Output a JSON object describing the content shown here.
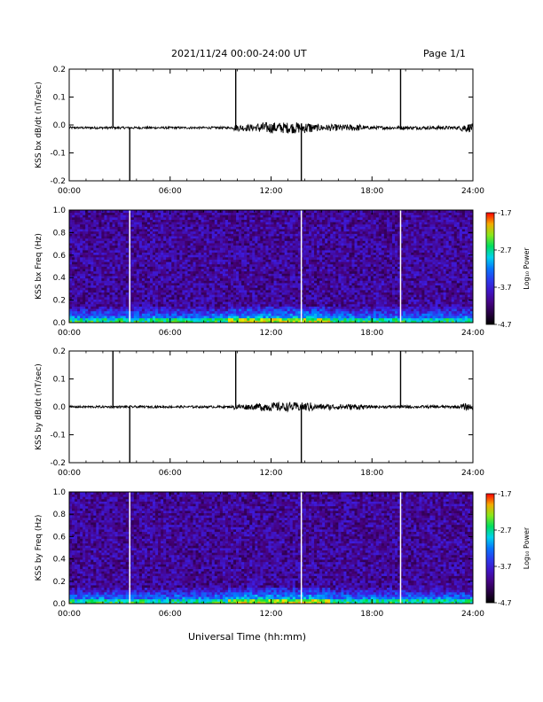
{
  "header": {
    "title": "2021/11/24  00:00-24:00 UT",
    "page": "Page 1/1"
  },
  "x_axis_title": "Universal Time (hh:mm)",
  "chart_data": [
    {
      "type": "line",
      "ylabel": "KSS bx dB/dt (nT/sec)",
      "xlim": [
        0,
        24
      ],
      "ylim": [
        -0.2,
        0.2
      ],
      "xticks": [
        "00:00",
        "06:00",
        "12:00",
        "18:00",
        "24:00"
      ],
      "yticks": [
        "-0.2",
        "-0.1",
        "0.0",
        "0.1",
        "0.2"
      ],
      "baseline": -0.01,
      "spikes": [
        {
          "t": 2.6,
          "y": 0.2
        },
        {
          "t": 3.6,
          "y": -0.2
        },
        {
          "t": 9.9,
          "y": 0.2
        },
        {
          "t": 13.8,
          "y": -0.2
        },
        {
          "t": 19.7,
          "y": 0.2
        }
      ],
      "noise": [
        [
          0,
          0.004
        ],
        [
          9.8,
          0.012
        ],
        [
          11.2,
          0.02
        ],
        [
          14.5,
          0.012
        ],
        [
          17.5,
          0.006
        ],
        [
          23.3,
          0.015
        ]
      ]
    },
    {
      "type": "heatmap",
      "ylabel": "KSS bx Freq (Hz)",
      "xlim": [
        0,
        24
      ],
      "ylim": [
        0.0,
        1.0
      ],
      "xticks": [
        "00:00",
        "06:00",
        "12:00",
        "18:00",
        "24:00"
      ],
      "yticks": [
        "0.0",
        "0.2",
        "0.4",
        "0.6",
        "0.8",
        "1.0"
      ],
      "gaps": [
        3.6,
        13.8,
        19.7
      ],
      "colorbar": {
        "label": "Log₁₀ Power",
        "min": -4.7,
        "max": -1.7,
        "ticks": [
          "-1.7",
          "-2.7",
          "-3.7",
          "-4.7"
        ]
      }
    },
    {
      "type": "line",
      "ylabel": "KSS by dB/dt (nT/sec)",
      "xlim": [
        0,
        24
      ],
      "ylim": [
        -0.2,
        0.2
      ],
      "xticks": [
        "00:00",
        "06:00",
        "12:00",
        "18:00",
        "24:00"
      ],
      "yticks": [
        "-0.2",
        "-0.1",
        "0.0",
        "0.1",
        "0.2"
      ],
      "baseline": 0.0,
      "spikes": [
        {
          "t": 2.6,
          "y": 0.2
        },
        {
          "t": 3.6,
          "y": -0.2
        },
        {
          "t": 9.9,
          "y": 0.2
        },
        {
          "t": 13.8,
          "y": -0.2
        },
        {
          "t": 19.7,
          "y": 0.2
        }
      ],
      "noise": [
        [
          0,
          0.004
        ],
        [
          9.8,
          0.01
        ],
        [
          11.2,
          0.016
        ],
        [
          14.5,
          0.01
        ],
        [
          17.5,
          0.005
        ],
        [
          23.3,
          0.012
        ]
      ]
    },
    {
      "type": "heatmap",
      "ylabel": "KSS by Freq (Hz)",
      "xlim": [
        0,
        24
      ],
      "ylim": [
        0.0,
        1.0
      ],
      "xticks": [
        "00:00",
        "06:00",
        "12:00",
        "18:00",
        "24:00"
      ],
      "yticks": [
        "0.0",
        "0.2",
        "0.4",
        "0.6",
        "0.8",
        "1.0"
      ],
      "gaps": [
        3.6,
        13.8,
        19.7
      ],
      "colorbar": {
        "label": "Log₁₀ Power",
        "min": -4.7,
        "max": -1.7,
        "ticks": [
          "-1.7",
          "-2.7",
          "-3.7",
          "-4.7"
        ]
      }
    }
  ]
}
